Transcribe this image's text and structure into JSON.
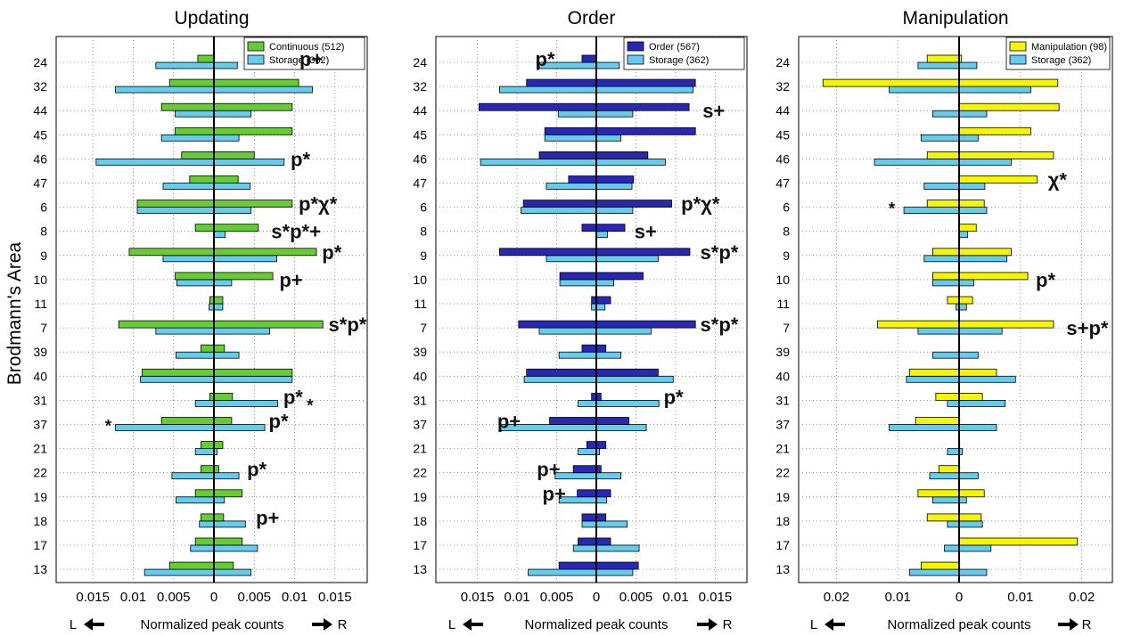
{
  "ylabel": "Brodmann's Area",
  "xlabel_left": "L",
  "xlabel_text": "Normalized peak counts",
  "xlabel_right": "R",
  "colors": {
    "continuous": "#66cc33",
    "order": "#2828b4",
    "manipulation": "#f5f500",
    "storage": "#66ccee",
    "edge": "#000000"
  },
  "chart_data": [
    {
      "type": "bar",
      "title": "Updating",
      "xlim": [
        -0.019,
        0.019
      ],
      "xticks": [
        -0.015,
        -0.01,
        -0.005,
        0,
        0.005,
        0.01,
        0.015
      ],
      "xtick_labels": [
        "0.015",
        "0.01",
        "0.005",
        "0",
        "0.005",
        "0.01",
        "0.015"
      ],
      "legend_position": "top-right",
      "categories": [
        "24",
        "32",
        "44",
        "45",
        "46",
        "47",
        "6",
        "8",
        "9",
        "10",
        "11",
        "7",
        "39",
        "40",
        "31",
        "37",
        "21",
        "22",
        "19",
        "18",
        "17",
        "13"
      ],
      "series": [
        {
          "name": "Continuous (512)",
          "color_key": "continuous",
          "left": [
            0.002,
            0.0055,
            0.0065,
            0.0048,
            0.004,
            0.003,
            0.0095,
            0.0023,
            0.0105,
            0.0048,
            0.0005,
            0.0118,
            0.0016,
            0.0089,
            0.0005,
            0.0065,
            0.0016,
            0.0016,
            0.0023,
            0.0016,
            0.0023,
            0.0055
          ],
          "right": [
            0,
            0.0105,
            0.0097,
            0.0097,
            0.005,
            0.003,
            0.0097,
            0.0055,
            0.0127,
            0.0073,
            0.0011,
            0.0135,
            0.0013,
            0.0097,
            0.0023,
            0.0022,
            0.0011,
            0.0006,
            0.0035,
            0.0012,
            0.0035,
            0.0024
          ]
        },
        {
          "name": "Storage (362)",
          "color_key": "storage",
          "left": [
            0.0072,
            0.0122,
            0.0048,
            0.0065,
            0.0146,
            0.0063,
            0.0095,
            0,
            0.0063,
            0.0046,
            0.0006,
            0.0072,
            0.0047,
            0.0091,
            0.0023,
            0.0122,
            0.0023,
            0.0052,
            0.0047,
            0.0018,
            0.0029,
            0.0086
          ],
          "right": [
            0.0029,
            0.0122,
            0.0046,
            0.0031,
            0.0087,
            0.0045,
            0.0046,
            0.0014,
            0.0078,
            0.0022,
            0.0011,
            0.0069,
            0.0031,
            0.0097,
            0.0079,
            0.0063,
            0.0004,
            0.0031,
            0.0013,
            0.0039,
            0.0054,
            0.0046
          ]
        }
      ],
      "annotations": [
        {
          "category": "24",
          "text": "p+",
          "pos": 0.0106,
          "offset": -4
        },
        {
          "category": "46",
          "text": "p*",
          "pos": 0.0095
        },
        {
          "category": "6",
          "text": "p*χ*",
          "pos": 0.0105,
          "offset": -4
        },
        {
          "category": "8",
          "text": "s*p*+",
          "pos": 0.0071
        },
        {
          "category": "9",
          "text": "p*",
          "pos": 0.0134,
          "offset": -4
        },
        {
          "category": "10",
          "text": "p+",
          "pos": 0.0081
        },
        {
          "category": "7",
          "text": "s*p*",
          "pos": 0.0142,
          "offset": -4
        },
        {
          "category": "31",
          "text": "p*",
          "pos": 0.0086,
          "offset": -4
        },
        {
          "category": "31",
          "text": "*",
          "pos": 0.0115,
          "offset": 4
        },
        {
          "category": "37",
          "text": "p*",
          "pos": 0.0068,
          "offset": -4
        },
        {
          "category": "37",
          "text": "*",
          "pos": -0.0135,
          "offset": 0
        },
        {
          "category": "22",
          "text": "p*",
          "pos": 0.0041,
          "offset": -4
        },
        {
          "category": "18",
          "text": "p+",
          "pos": 0.0052,
          "offset": -4
        }
      ]
    },
    {
      "type": "bar",
      "title": "Order",
      "xlim": [
        -0.019,
        0.019
      ],
      "xticks": [
        -0.015,
        -0.01,
        -0.005,
        0,
        0.005,
        0.01,
        0.015
      ],
      "xtick_labels": [
        "0.015",
        "0.01",
        "0.005",
        "0",
        "0.005",
        "0.01",
        "0.015"
      ],
      "legend_position": "top-right",
      "categories": [
        "24",
        "32",
        "44",
        "45",
        "46",
        "47",
        "6",
        "8",
        "9",
        "10",
        "11",
        "7",
        "39",
        "40",
        "31",
        "37",
        "21",
        "22",
        "19",
        "18",
        "17",
        "13"
      ],
      "series": [
        {
          "name": "Order (567)",
          "color_key": "order",
          "left": [
            0.0018,
            0.0088,
            0.0148,
            0.0065,
            0.0072,
            0.0035,
            0.0092,
            0.0018,
            0.0122,
            0.0046,
            0.0006,
            0.0098,
            0.0018,
            0.0088,
            0.0006,
            0.0059,
            0.0012,
            0.0029,
            0.0024,
            0.0018,
            0.0023,
            0.0047
          ],
          "right": [
            0,
            0.0125,
            0.0117,
            0.0125,
            0.0065,
            0.0047,
            0.0095,
            0.0036,
            0.0118,
            0.0059,
            0.0018,
            0.0125,
            0.0012,
            0.0078,
            0.0006,
            0.0041,
            0.0012,
            0.0006,
            0.0018,
            0.0012,
            0.0018,
            0.0053
          ]
        },
        {
          "name": "Storage (362)",
          "color_key": "storage",
          "left": [
            0.0072,
            0.0122,
            0.0048,
            0.0065,
            0.0146,
            0.0063,
            0.0095,
            0,
            0.0063,
            0.0046,
            0.0006,
            0.0072,
            0.0047,
            0.0091,
            0.0023,
            0.0122,
            0.0023,
            0.0052,
            0.0047,
            0.0018,
            0.0029,
            0.0086
          ],
          "right": [
            0.0029,
            0.0122,
            0.0046,
            0.0031,
            0.0087,
            0.0045,
            0.0046,
            0.0014,
            0.0078,
            0.0022,
            0.0011,
            0.0069,
            0.0031,
            0.0097,
            0.0079,
            0.0063,
            0.0004,
            0.0031,
            0.0013,
            0.0039,
            0.0054,
            0.0046
          ]
        }
      ],
      "annotations": [
        {
          "category": "24",
          "text": "p*",
          "pos": -0.0077,
          "offset": -4
        },
        {
          "category": "44",
          "text": "s+",
          "pos": 0.0134
        },
        {
          "category": "6",
          "text": "p*χ*",
          "pos": 0.0107,
          "offset": -4
        },
        {
          "category": "8",
          "text": "s+",
          "pos": 0.0048
        },
        {
          "category": "9",
          "text": "s*p*",
          "pos": 0.0131,
          "offset": -4
        },
        {
          "category": "7",
          "text": "s*p*",
          "pos": 0.0131,
          "offset": -4
        },
        {
          "category": "31",
          "text": "p*",
          "pos": 0.0085,
          "offset": -4
        },
        {
          "category": "37",
          "text": "p+",
          "pos": -0.0125,
          "offset": -4
        },
        {
          "category": "22",
          "text": "p+",
          "pos": -0.0075,
          "offset": -4
        },
        {
          "category": "19",
          "text": "p+",
          "pos": -0.0068,
          "offset": -4
        }
      ]
    },
    {
      "type": "bar",
      "title": "Manipulation",
      "xlim": [
        -0.026,
        0.025
      ],
      "xticks": [
        -0.02,
        -0.01,
        0,
        0.01,
        0.02
      ],
      "xtick_labels": [
        "0.02",
        "0.01",
        "0",
        "0.01",
        "0.02"
      ],
      "legend_position": "top-right",
      "categories": [
        "24",
        "32",
        "44",
        "45",
        "46",
        "47",
        "6",
        "8",
        "9",
        "10",
        "11",
        "7",
        "39",
        "40",
        "31",
        "37",
        "21",
        "22",
        "19",
        "18",
        "17",
        "13"
      ],
      "series": [
        {
          "name": "Manipulation (98)",
          "color_key": "manipulation",
          "left": [
            0.0052,
            0.0222,
            0.0001,
            0.0001,
            0.0052,
            0.0001,
            0.0052,
            0.0001,
            0.0043,
            0.0043,
            0.0019,
            0.0133,
            0.0001,
            0.0081,
            0.0038,
            0.0071,
            0.0001,
            0.0033,
            0.0067,
            0.0052,
            0.0001,
            0.0062
          ],
          "right": [
            0.0004,
            0.0161,
            0.0163,
            0.0117,
            0.0154,
            0.0127,
            0.0041,
            0.0028,
            0.0085,
            0.0112,
            0.0022,
            0.0154,
            0.0001,
            0.0061,
            0.0038,
            0.0001,
            0.0001,
            0.0001,
            0.0041,
            0.0036,
            0.0193,
            0.0001
          ]
        },
        {
          "name": "Storage (362)",
          "color_key": "storage",
          "left": [
            0.0067,
            0.0114,
            0.0043,
            0.0062,
            0.0138,
            0.0057,
            0.009,
            0,
            0.0057,
            0.0043,
            0.0005,
            0.0067,
            0.0043,
            0.0086,
            0.0019,
            0.0114,
            0.0019,
            0.0048,
            0.0043,
            0.0019,
            0.0024,
            0.0081
          ],
          "right": [
            0.0029,
            0.0117,
            0.0045,
            0.0031,
            0.0085,
            0.0042,
            0.0045,
            0.0014,
            0.0078,
            0.0024,
            0.0012,
            0.007,
            0.0031,
            0.0092,
            0.0075,
            0.0061,
            0.0005,
            0.0031,
            0.0012,
            0.0038,
            0.0052,
            0.0045
          ]
        }
      ],
      "annotations": [
        {
          "category": "47",
          "text": "χ*",
          "pos": 0.0145,
          "offset": -4
        },
        {
          "category": "6",
          "text": "*",
          "pos": -0.0115,
          "offset": 0
        },
        {
          "category": "10",
          "text": "p*",
          "pos": 0.0125
        },
        {
          "category": "7",
          "text": "s+p*",
          "pos": 0.0175
        }
      ]
    }
  ]
}
